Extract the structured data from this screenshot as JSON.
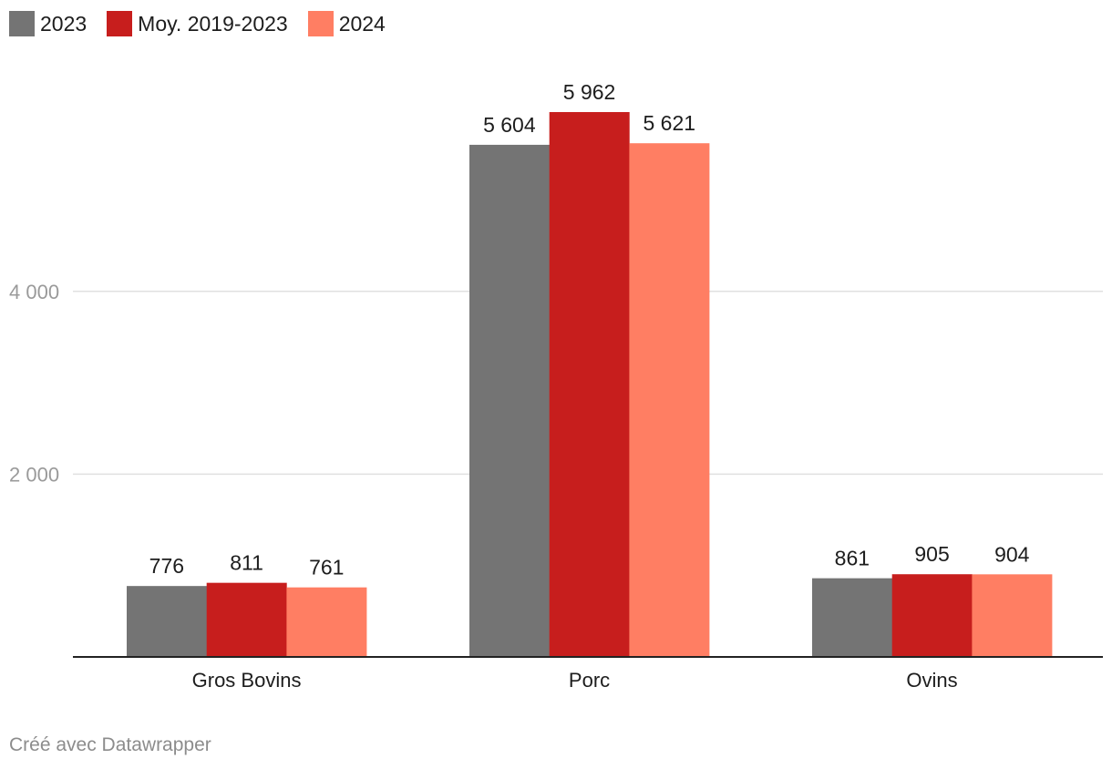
{
  "chart_data": {
    "type": "bar",
    "categories": [
      "Gros Bovins",
      "Porc",
      "Ovins"
    ],
    "series": [
      {
        "name": "2023",
        "color": "#747474",
        "values": [
          776,
          5604,
          861
        ],
        "labels": [
          "776",
          "5 604",
          "861"
        ]
      },
      {
        "name": "Moy. 2019-2023",
        "color": "#c71e1d",
        "values": [
          811,
          5962,
          905
        ],
        "labels": [
          "811",
          "5 962",
          "905"
        ]
      },
      {
        "name": "2024",
        "color": "#ff7e63",
        "values": [
          761,
          5621,
          904
        ],
        "labels": [
          "761",
          "5 621",
          "904"
        ]
      }
    ],
    "yticks": [
      {
        "value": 2000,
        "label": "2 000"
      },
      {
        "value": 4000,
        "label": "4 000"
      }
    ],
    "ylim": [
      0,
      6000
    ],
    "grid": true,
    "legend_position": "top-left"
  },
  "footer": {
    "credit": "Créé avec Datawrapper"
  }
}
